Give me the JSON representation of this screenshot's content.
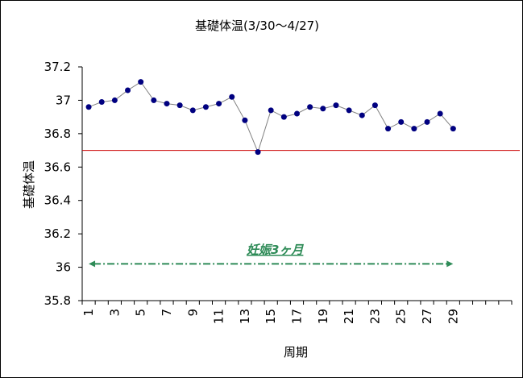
{
  "chart_data": {
    "type": "line",
    "title": "基礎体温(3/30〜4/27)",
    "xlabel": "周期",
    "ylabel": "基礎体温",
    "ylim": [
      35.8,
      37.2
    ],
    "yticks": [
      "37.2",
      "37",
      "36.8",
      "36.6",
      "36.4",
      "36.2",
      "36",
      "35.8"
    ],
    "x_category_count": 33,
    "x_tick_labels": [
      "1",
      "3",
      "5",
      "7",
      "9",
      "11",
      "13",
      "15",
      "17",
      "19",
      "21",
      "23",
      "25",
      "27",
      "29"
    ],
    "series": [
      {
        "x": [
          1,
          2,
          3,
          4,
          5,
          6,
          7,
          8,
          9,
          10,
          11,
          12,
          13,
          14,
          15,
          16,
          17,
          18,
          19,
          20,
          21,
          22,
          23,
          24,
          25,
          26,
          27,
          28,
          29
        ],
        "values": [
          36.96,
          36.99,
          37.0,
          37.06,
          37.11,
          37.0,
          36.98,
          36.97,
          36.94,
          36.96,
          36.98,
          37.02,
          36.88,
          36.69,
          36.94,
          36.9,
          36.92,
          36.96,
          36.95,
          36.97,
          36.94,
          36.91,
          36.97,
          36.83,
          36.87,
          36.83,
          36.87,
          36.92,
          36.83
        ],
        "color": "#000080",
        "line_color": "#808080"
      }
    ],
    "reference_line": {
      "value": 36.7,
      "color": "#cc0000"
    },
    "annotation": {
      "text": "妊娠3ヶ月",
      "value": 36.02,
      "from": 1,
      "to": 29,
      "color": "#2e8b57"
    },
    "grid": false,
    "legend": "none"
  }
}
